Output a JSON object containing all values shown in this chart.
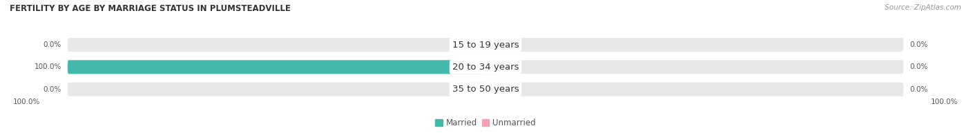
{
  "title": "FERTILITY BY AGE BY MARRIAGE STATUS IN PLUMSTEADVILLE",
  "source": "Source: ZipAtlas.com",
  "categories": [
    "15 to 19 years",
    "20 to 34 years",
    "35 to 50 years"
  ],
  "married_values": [
    0.0,
    100.0,
    0.0
  ],
  "unmarried_values": [
    0.0,
    0.0,
    0.0
  ],
  "married_color": "#45B8AC",
  "unmarried_color": "#F4A0B5",
  "bar_bg_color": "#E8E8E8",
  "bar_height": 0.62,
  "label_left_100": "100.0%",
  "label_right_100": "100.0%",
  "title_fontsize": 8.5,
  "source_fontsize": 7.5,
  "value_fontsize": 7.5,
  "legend_fontsize": 8.5,
  "category_fontsize": 9.5,
  "total_width": 100
}
